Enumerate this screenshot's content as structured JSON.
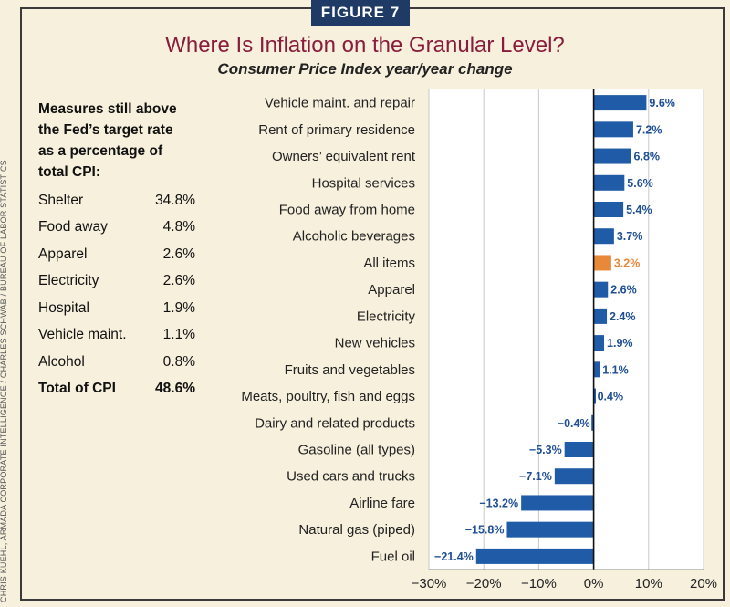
{
  "figure_label": "FIGURE 7",
  "credit": "CHRIS KUEHL, ARMADA CORPORATE INTELLIGENCE / CHARLES SCHWAB / BUREAU OF LABOR STATISTICS",
  "sidebar": {
    "heading_lines": [
      "Measures still above",
      "the Fed’s target rate",
      "as a percentage of",
      "total CPI:"
    ],
    "rows": [
      {
        "label": "Shelter",
        "value": "34.8%"
      },
      {
        "label": "Food away",
        "value": "4.8%"
      },
      {
        "label": "Apparel",
        "value": "2.6%"
      },
      {
        "label": "Electricity",
        "value": "2.6%"
      },
      {
        "label": "Hospital",
        "value": "1.9%"
      },
      {
        "label": "Vehicle maint.",
        "value": "1.1%"
      },
      {
        "label": "Alcohol",
        "value": "0.8%"
      }
    ],
    "total": {
      "label": "Total of CPI",
      "value": "48.6%"
    }
  },
  "colors": {
    "bar": "#1f5ba6",
    "highlight": "#e8893a",
    "title": "#8a1c3c",
    "label_blue": "#1f4f94"
  },
  "chart_data": {
    "type": "bar",
    "orientation": "horizontal",
    "title": "Where Is Inflation on the Granular Level?",
    "subtitle": "Consumer Price Index year/year change",
    "categories": [
      "Vehicle maint. and repair",
      "Rent of primary residence",
      "Owners’ equivalent rent",
      "Hospital services",
      "Food away from home",
      "Alcoholic beverages",
      "All items",
      "Apparel",
      "Electricity",
      "New vehicles",
      "Fruits and vegetables",
      "Meats, poultry, fish and eggs",
      "Dairy and related products",
      "Gasoline (all types)",
      "Used cars and trucks",
      "Airline fare",
      "Natural gas (piped)",
      "Fuel oil"
    ],
    "values": [
      9.6,
      7.2,
      6.8,
      5.6,
      5.4,
      3.7,
      3.2,
      2.6,
      2.4,
      1.9,
      1.1,
      0.4,
      -0.4,
      -5.3,
      -7.1,
      -13.2,
      -15.8,
      -21.4
    ],
    "value_labels": [
      "9.6%",
      "7.2%",
      "6.8%",
      "5.6%",
      "5.4%",
      "3.7%",
      "3.2%",
      "2.6%",
      "2.4%",
      "1.9%",
      "1.1%",
      "0.4%",
      "−0.4%",
      "−5.3%",
      "−7.1%",
      "−13.2%",
      "−15.8%",
      "−21.4%"
    ],
    "highlight": "All items",
    "xlim": [
      -30,
      20
    ],
    "xticks": [
      -30,
      -20,
      -10,
      0,
      10,
      20
    ],
    "xtick_labels": [
      "−30%",
      "−20%",
      "−10%",
      "0%",
      "10%",
      "20%"
    ],
    "grid": true,
    "unit": "%"
  }
}
